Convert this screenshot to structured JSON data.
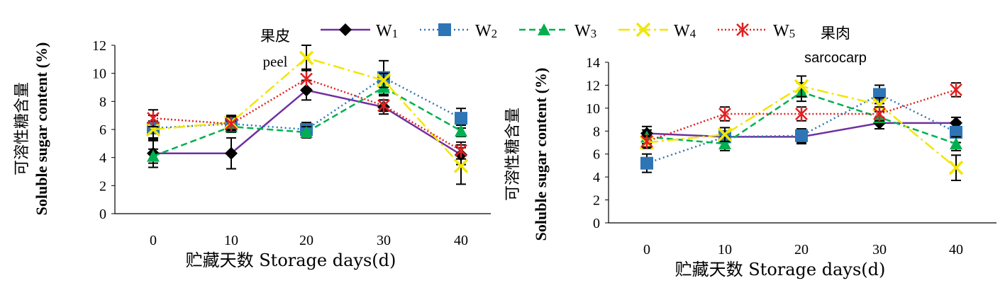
{
  "legend": {
    "entries": [
      {
        "name": "W",
        "sub": "1",
        "color": "#7030A0",
        "dash": "",
        "marker": "diamond"
      },
      {
        "name": "W",
        "sub": "2",
        "color": "#2E75B6",
        "dash": "2,4",
        "marker": "square"
      },
      {
        "name": "W",
        "sub": "3",
        "color": "#00B050",
        "dash": "9,5",
        "marker": "triangle"
      },
      {
        "name": "W",
        "sub": "4",
        "color": "#F2E600",
        "dash": "16,5,3,5",
        "marker": "x"
      },
      {
        "name": "W",
        "sub": "5",
        "color": "#E02020",
        "dash": "2,3",
        "marker": "star"
      }
    ]
  },
  "chart_data": [
    {
      "type": "line",
      "panel": "peel",
      "annotation_zh": "果皮",
      "annotation_en": "peel",
      "xlabel": "贮藏天数 Storage days(d)",
      "ylabel_zh": "可溶性糖含量",
      "ylabel_en": "Soluble sugar content (%)",
      "x": [
        0,
        10,
        20,
        30,
        40
      ],
      "ylim": [
        0,
        12
      ],
      "yticks": [
        0,
        2,
        4,
        6,
        8,
        10,
        12
      ],
      "series": [
        {
          "name": "W1",
          "values": [
            4.3,
            4.3,
            8.8,
            7.6,
            4.2
          ],
          "errors": [
            1.0,
            1.1,
            0.7,
            0.5,
            0.7
          ]
        },
        {
          "name": "W2",
          "values": [
            6.1,
            6.4,
            6.0,
            9.7,
            6.8
          ],
          "errors": [
            0.9,
            0.6,
            0.5,
            1.2,
            0.7
          ]
        },
        {
          "name": "W3",
          "values": [
            4.1,
            6.2,
            5.8,
            9.0,
            5.9
          ],
          "errors": [
            0.5,
            0.4,
            0.4,
            0.6,
            0.4
          ]
        },
        {
          "name": "W4",
          "values": [
            6.0,
            6.5,
            11.1,
            9.5,
            3.4
          ],
          "errors": [
            0.6,
            0.5,
            0.9,
            0.5,
            1.3
          ]
        },
        {
          "name": "W5",
          "values": [
            6.8,
            6.4,
            9.6,
            7.7,
            4.5
          ],
          "errors": [
            0.6,
            0.5,
            0.7,
            0.4,
            0.6
          ]
        }
      ]
    },
    {
      "type": "line",
      "panel": "sarcocarp",
      "annotation_zh": "果肉",
      "annotation_en": "sarcocarp",
      "xlabel": "贮藏天数 Storage days(d)",
      "ylabel_zh": "可溶性糖含量",
      "ylabel_en": "Soluble sugar content (%)",
      "x": [
        0,
        10,
        20,
        30,
        40
      ],
      "ylim": [
        0,
        14
      ],
      "yticks": [
        0,
        2,
        4,
        6,
        8,
        10,
        12,
        14
      ],
      "series": [
        {
          "name": "W1",
          "values": [
            7.8,
            7.5,
            7.5,
            8.7,
            8.7
          ],
          "errors": [
            0.6,
            0.5,
            0.6,
            0.5,
            0.5
          ]
        },
        {
          "name": "W2",
          "values": [
            5.2,
            7.5,
            7.6,
            11.2,
            7.9
          ],
          "errors": [
            0.8,
            0.5,
            0.6,
            0.8,
            0.9
          ]
        },
        {
          "name": "W3",
          "values": [
            7.5,
            6.9,
            11.4,
            9.2,
            6.9
          ],
          "errors": [
            0.6,
            0.6,
            0.8,
            0.5,
            0.6
          ]
        },
        {
          "name": "W4",
          "values": [
            7.0,
            7.7,
            11.9,
            10.3,
            4.8
          ],
          "errors": [
            0.5,
            0.6,
            0.9,
            0.6,
            1.1
          ]
        },
        {
          "name": "W5",
          "values": [
            7.1,
            9.5,
            9.5,
            9.5,
            11.6
          ],
          "errors": [
            0.5,
            0.6,
            0.6,
            0.6,
            0.6
          ]
        }
      ]
    }
  ]
}
